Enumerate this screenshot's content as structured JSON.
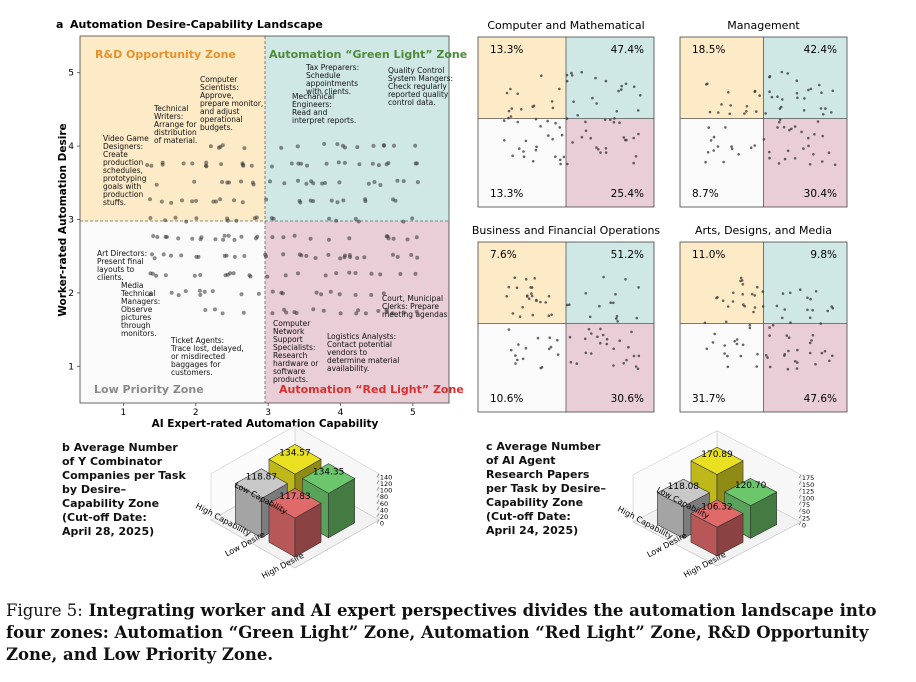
{
  "panel_a": {
    "label": "a",
    "title": "Automation Desire-Capability Landscape",
    "xlabel": "AI Expert-rated Automation Capability",
    "ylabel": "Worker-rated Automation Desire",
    "xticks": [
      "1",
      "2",
      "3",
      "4",
      "5"
    ],
    "yticks": [
      "1",
      "2",
      "3",
      "4",
      "5"
    ],
    "zones": {
      "rd": "R&D Opportunity Zone",
      "green": "Automation “Green Light” Zone",
      "low": "Low Priority Zone",
      "red": "Automation “Red Light” Zone"
    },
    "colors": {
      "rd": "#fdebc8",
      "green": "#cfe8e6",
      "low": "#fafafa",
      "red": "#e9cdd7",
      "rd_text": "#e6922c",
      "green_text": "#4f8a3a",
      "red_text": "#d9302f",
      "low_text": "#8a8a8a"
    },
    "annotations": [
      {
        "id": "computer-scientists",
        "lines": [
          "Computer",
          "Scientists:",
          "Approve,",
          "prepare monitor,",
          "and adjust",
          "operational",
          "budgets."
        ]
      },
      {
        "id": "technical-writers",
        "lines": [
          "Technical",
          "Writers:",
          "Arrange for",
          "distribution",
          "of material."
        ]
      },
      {
        "id": "video-game-designers",
        "lines": [
          "Video Game",
          "Designers:",
          "Create",
          "production",
          "schedules,",
          "prototyping",
          "goals with",
          "production",
          "stuffs."
        ]
      },
      {
        "id": "tax-preparers",
        "lines": [
          "Tax Preparers:",
          "Schedule",
          "appointments",
          "with clients."
        ]
      },
      {
        "id": "quality-control",
        "lines": [
          "Quality Control",
          "System Mangers:",
          "Check regularly",
          "reported quality",
          "control data."
        ]
      },
      {
        "id": "mechanical-engineers",
        "lines": [
          "Mechanical",
          "Engineers:",
          "Read and",
          "interpret reports."
        ]
      },
      {
        "id": "art-directors",
        "lines": [
          "Art Directors:",
          "Present final",
          "layouts to",
          "clients."
        ]
      },
      {
        "id": "media-technical-managers",
        "lines": [
          "Media",
          "Technical",
          "Managers:",
          "Observe",
          "pictures",
          "through",
          "monitors."
        ]
      },
      {
        "id": "ticket-agents",
        "lines": [
          "Ticket Agents:",
          "Trace lost, delayed,",
          "or misdirected",
          "baggages for",
          "customers."
        ]
      },
      {
        "id": "computer-network",
        "lines": [
          "Computer",
          "Network",
          "Support",
          "Specialists:",
          "Research",
          "hardware or",
          "software",
          "products."
        ]
      },
      {
        "id": "logistics-analysts",
        "lines": [
          "Logistics Analysts:",
          "Contact potential",
          "vendors to",
          "determine material",
          "availability."
        ]
      },
      {
        "id": "court-clerks",
        "lines": [
          "Court, Municipal",
          "Clerks: Prepare",
          "meeting agendas"
        ]
      }
    ]
  },
  "small_multiples": [
    {
      "title": "Computer and Mathematical",
      "tl": "13.3%",
      "tr": "47.4%",
      "bl": "13.3%",
      "br": "25.4%"
    },
    {
      "title": "Management",
      "tl": "18.5%",
      "tr": "42.4%",
      "bl": "8.7%",
      "br": "30.4%"
    },
    {
      "title": "Business and Financial Operations",
      "tl": "7.6%",
      "tr": "51.2%",
      "bl": "10.6%",
      "br": "30.6%"
    },
    {
      "title": "Arts, Designs, and Media",
      "tl": "11.0%",
      "tr": "9.8%",
      "bl": "31.7%",
      "br": "47.6%"
    }
  ],
  "panel_b": {
    "label": "b",
    "title_lines": [
      "Average Number",
      "of Y Combinator",
      "Companies per Task",
      "by Desire–",
      "Capability Zone",
      "(Cut-off Date:",
      "April 28, 2025)"
    ],
    "zticks": [
      "0",
      "20",
      "40",
      "60",
      "80",
      "100",
      "120",
      "140"
    ],
    "axis_labels": {
      "low_cap": "Low Capability",
      "high_cap": "High Capability",
      "low_des": "Low Desire",
      "high_des": "High Desire"
    }
  },
  "panel_c": {
    "label": "c",
    "title_lines": [
      "Average Number",
      "of AI Agent",
      "Research Papers",
      "per Task by Desire–",
      "Capability Zone",
      "(Cut-off Date:",
      "April 24, 2025)"
    ],
    "zticks": [
      "0",
      "25",
      "50",
      "75",
      "100",
      "125",
      "150",
      "175"
    ],
    "axis_labels": {
      "low_cap": "Low Capability",
      "high_cap": "High Capability",
      "low_des": "Low Desire",
      "high_des": "High Desire"
    }
  },
  "chart_data": [
    {
      "type": "bar",
      "panel": "b",
      "categories": [
        "Low Capability / Low Desire",
        "Low Capability / High Desire",
        "High Capability / Low Desire",
        "High Capability / High Desire"
      ],
      "values": [
        118.87,
        134.57,
        117.83,
        134.35
      ],
      "value_labels": [
        "118.87",
        "134.57",
        "117.83",
        "134.35"
      ],
      "colors": [
        "#c8c8c8",
        "#e8e020",
        "#e06a6a",
        "#6cc66c"
      ],
      "zlim": [
        0,
        140
      ]
    },
    {
      "type": "bar",
      "panel": "c",
      "categories": [
        "Low Capability / Low Desire",
        "Low Capability / High Desire",
        "High Capability / Low Desire",
        "High Capability / High Desire"
      ],
      "values": [
        118.08,
        170.89,
        106.32,
        120.7
      ],
      "value_labels": [
        "118.08",
        "170.89",
        "106.32",
        "120.70"
      ],
      "colors": [
        "#c8c8c8",
        "#e8e020",
        "#e06a6a",
        "#6cc66c"
      ],
      "zlim": [
        0,
        175
      ]
    },
    {
      "type": "scatter",
      "panel": "a",
      "xlim": [
        0.4,
        5.5
      ],
      "ylim": [
        0.5,
        5.5
      ],
      "x_threshold": 3,
      "y_threshold": 3
    }
  ],
  "caption": {
    "label": "Figure 5:",
    "text": "Integrating worker and AI expert perspectives divides the automation landscape into four zones: Automation “Green Light” Zone, Automation “Red Light” Zone, R&D Opportunity Zone, and Low Priority Zone."
  }
}
